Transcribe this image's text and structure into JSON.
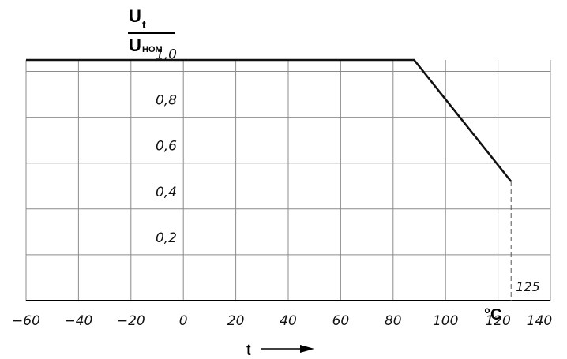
{
  "chart_data": {
    "type": "line",
    "title": "",
    "ylabel": {
      "numerator_main": "U",
      "numerator_sub": "t",
      "denominator_main": "U",
      "denominator_sub": "HOM"
    },
    "xlabel": "t",
    "x_unit": "°C",
    "x_ticks": [
      "-60",
      "-40",
      "-20",
      "0",
      "20",
      "40",
      "60",
      "80",
      "100",
      "120",
      "140"
    ],
    "y_ticks": [
      "0,2",
      "0,4",
      "0,6",
      "0,8",
      "1,0"
    ],
    "xlim": [
      -60,
      140
    ],
    "ylim": [
      0,
      1.05
    ],
    "grid": true,
    "series": [
      {
        "x": [
          -60,
          88,
          125
        ],
        "y": [
          1.05,
          1.05,
          0.52
        ]
      }
    ],
    "annotations": [
      {
        "text": "125",
        "x": 125
      }
    ],
    "colors": {
      "line": "#111111",
      "grid": "#8c8c8c"
    }
  }
}
